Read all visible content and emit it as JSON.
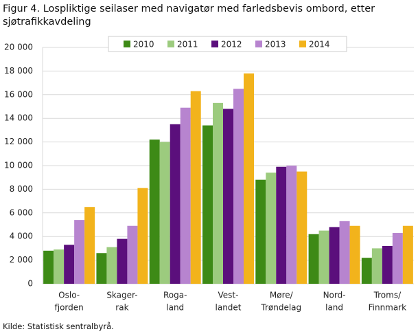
{
  "chart_data": {
    "type": "bar",
    "title": "Figur 4. Lospliktige seilaser med navigatør med farledsbevis ombord, etter sjøtrafikkavdeling",
    "source": "Kilde: Statistisk sentralbyrå.",
    "categories": [
      [
        "Oslo-",
        "fjorden"
      ],
      [
        "Skager-",
        "rak"
      ],
      [
        "Roga-",
        "land"
      ],
      [
        "Vest-",
        "landet"
      ],
      [
        "Møre/",
        "Trøndelag"
      ],
      [
        "Nord-",
        "land"
      ],
      [
        "Troms/",
        "Finnmark"
      ]
    ],
    "series": [
      {
        "name": "2010",
        "color": "#3d8a16",
        "values": [
          2800,
          2600,
          12200,
          13400,
          8800,
          4200,
          2200
        ]
      },
      {
        "name": "2011",
        "color": "#9ccb7e",
        "values": [
          2900,
          3100,
          12000,
          15300,
          9400,
          4500,
          3000
        ]
      },
      {
        "name": "2012",
        "color": "#5b0f7c",
        "values": [
          3300,
          3800,
          13500,
          14800,
          9900,
          4800,
          3200
        ]
      },
      {
        "name": "2013",
        "color": "#b784cf",
        "values": [
          5400,
          4900,
          14900,
          16500,
          10000,
          5300,
          4300
        ]
      },
      {
        "name": "2014",
        "color": "#f2b31c",
        "values": [
          6500,
          8100,
          16300,
          17800,
          9500,
          4900,
          4900
        ]
      }
    ],
    "ylim": [
      0,
      20000
    ],
    "yticks": [
      0,
      {
        "value": 2000,
        "label": "2 000"
      },
      {
        "value": 4000,
        "label": "4 000"
      },
      {
        "value": 6000,
        "label": "6 000"
      },
      {
        "value": 8000,
        "label": "8 000"
      },
      {
        "value": 10000,
        "label": "10 000"
      },
      {
        "value": 12000,
        "label": "12 000"
      },
      {
        "value": 14000,
        "label": "14 000"
      },
      {
        "value": 16000,
        "label": "16 000"
      },
      {
        "value": 18000,
        "label": "18 000"
      },
      {
        "value": 20000,
        "label": "20 000"
      }
    ],
    "grid": true,
    "legend": "top"
  }
}
